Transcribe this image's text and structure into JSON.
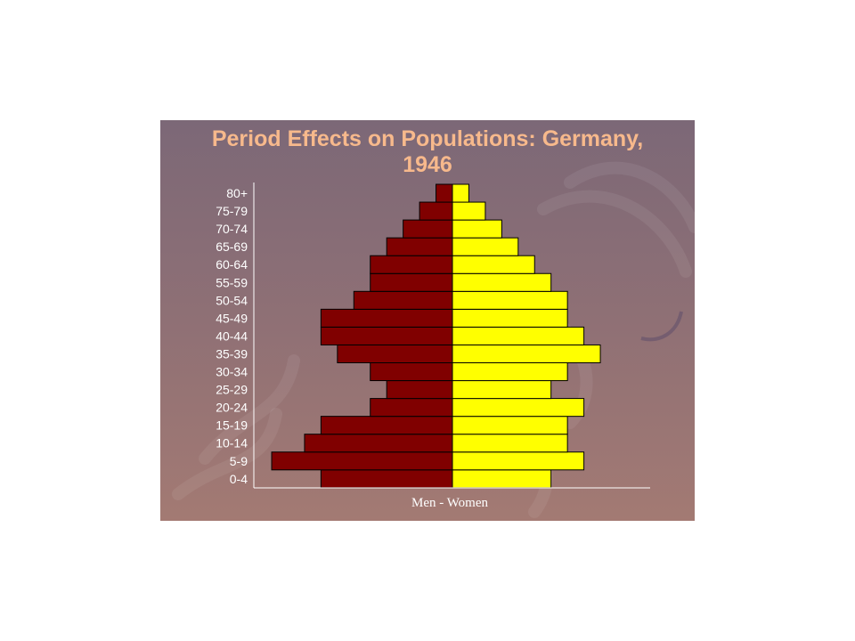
{
  "colors": {
    "men": "#800000",
    "women": "#ffff00",
    "title": "#f7b98c",
    "text": "#ffffff",
    "page": "#ffffff"
  },
  "chart_data": {
    "type": "bar",
    "orientation": "horizontal",
    "layout": "population-pyramid",
    "title": "Period Effects on Populations: Germany, 1946",
    "title_lines": [
      "Period Effects on Populations: Germany,",
      "1946"
    ],
    "xlabel": "Men - Women",
    "ylabel": "",
    "categories": [
      "0-4",
      "5-9",
      "10-14",
      "15-19",
      "20-24",
      "25-29",
      "30-34",
      "35-39",
      "40-44",
      "45-49",
      "50-54",
      "55-59",
      "60-64",
      "65-69",
      "70-74",
      "75-79",
      "80+"
    ],
    "series": [
      {
        "name": "Men",
        "side": "left",
        "values": [
          8,
          11,
          9,
          8,
          5,
          4,
          5,
          7,
          8,
          8,
          6,
          5,
          5,
          4,
          3,
          2,
          1
        ]
      },
      {
        "name": "Women",
        "side": "right",
        "values": [
          6,
          8,
          7,
          7,
          8,
          6,
          7,
          9,
          8,
          7,
          7,
          6,
          5,
          4,
          3,
          2,
          1
        ]
      }
    ],
    "xlim": [
      -12,
      12
    ],
    "grid": false,
    "legend": "none"
  }
}
